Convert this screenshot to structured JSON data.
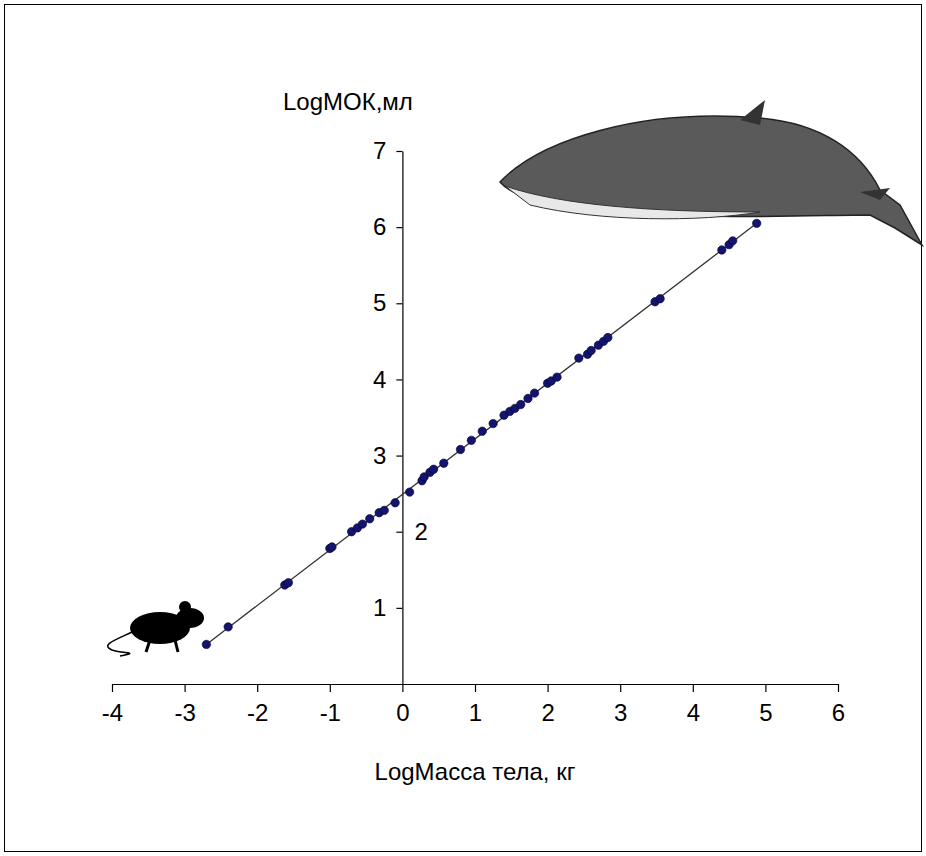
{
  "chart_data": {
    "type": "scatter",
    "x_label": "LogМасса тела, кг",
    "y_label": "LogМОК,мл",
    "x": [
      -2.7,
      -2.4,
      -1.62,
      -1.57,
      -1.0,
      -0.97,
      -0.7,
      -0.62,
      -0.55,
      -0.45,
      -0.32,
      -0.25,
      -0.1,
      0.1,
      0.27,
      0.3,
      0.38,
      0.43,
      0.57,
      0.8,
      0.95,
      1.1,
      1.25,
      1.4,
      1.48,
      1.55,
      1.63,
      1.73,
      1.82,
      2.0,
      2.05,
      2.13,
      2.43,
      2.55,
      2.6,
      2.7,
      2.77,
      2.83,
      3.48,
      3.55,
      4.4,
      4.5,
      4.55,
      4.88
    ],
    "values": [
      0.52,
      0.75,
      1.3,
      1.33,
      1.78,
      1.8,
      2.0,
      2.05,
      2.1,
      2.17,
      2.25,
      2.28,
      2.38,
      2.52,
      2.67,
      2.72,
      2.78,
      2.82,
      2.9,
      3.08,
      3.2,
      3.32,
      3.42,
      3.53,
      3.58,
      3.62,
      3.67,
      3.75,
      3.82,
      3.95,
      3.98,
      4.03,
      4.28,
      4.33,
      4.38,
      4.45,
      4.5,
      4.55,
      5.02,
      5.06,
      5.7,
      5.77,
      5.82,
      6.05
    ],
    "color": "#14146e",
    "marker": "circle",
    "fit_line": {
      "x": [
        -2.7,
        4.88
      ],
      "y": [
        0.52,
        6.05
      ]
    },
    "xlim": [
      -4,
      6
    ],
    "ylim": [
      0,
      7
    ],
    "xticks": [
      -4,
      -3,
      -2,
      -1,
      0,
      1,
      2,
      3,
      4,
      5,
      6
    ],
    "yticks": [
      1,
      2,
      3,
      4,
      5,
      6,
      7
    ]
  }
}
